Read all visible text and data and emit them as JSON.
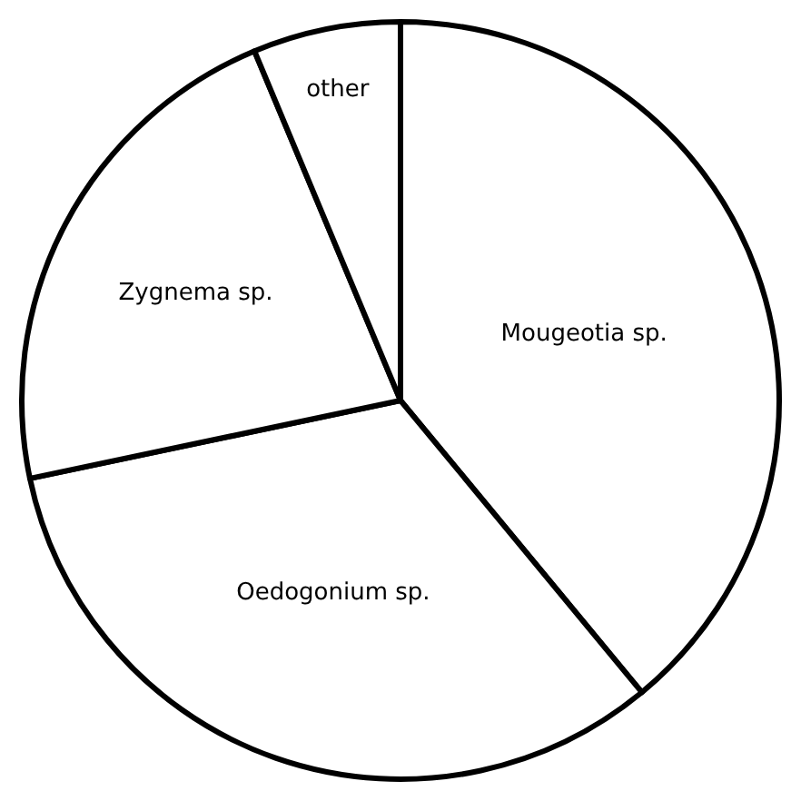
{
  "chart_data": {
    "type": "pie",
    "categories": [
      "Mougeotia sp.",
      "Oedogonium sp.",
      "Zygnema sp.",
      "other"
    ],
    "values": [
      39.0,
      32.7,
      22.0,
      6.3
    ],
    "colors": [
      "#ffffff",
      "#ffffff",
      "#ffffff",
      "#ffffff"
    ],
    "legend": false
  }
}
